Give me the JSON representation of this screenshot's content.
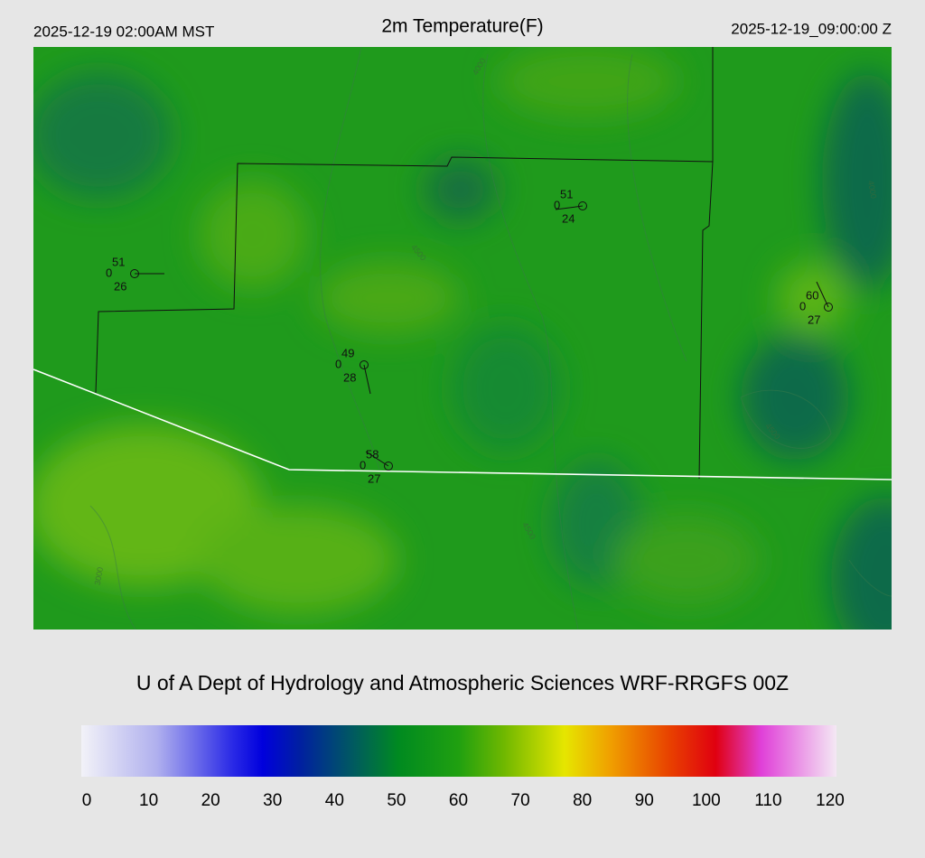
{
  "header": {
    "left": "2025-12-19 02:00AM MST",
    "title": "2m Temperature(F)",
    "right": "2025-12-19_09:00:00 Z"
  },
  "stations": [
    {
      "temperature": "51",
      "cloud": "0",
      "dewpoint": "26"
    },
    {
      "temperature": "49",
      "cloud": "0",
      "dewpoint": "28"
    },
    {
      "temperature": "58",
      "cloud": "0",
      "dewpoint": "27"
    },
    {
      "temperature": "51",
      "cloud": "0",
      "dewpoint": "24"
    },
    {
      "temperature": "60",
      "cloud": "0",
      "dewpoint": "27"
    }
  ],
  "contour_labels": [
    "4000",
    "4500",
    "4500",
    "3000",
    "4500",
    "4000"
  ],
  "credit": "U of A Dept of Hydrology and Atmospheric Sciences WRF-RRGFS 00Z",
  "colorbar": {
    "ticks": [
      0,
      10,
      20,
      30,
      40,
      50,
      60,
      70,
      80,
      90,
      100,
      110,
      120
    ]
  }
}
